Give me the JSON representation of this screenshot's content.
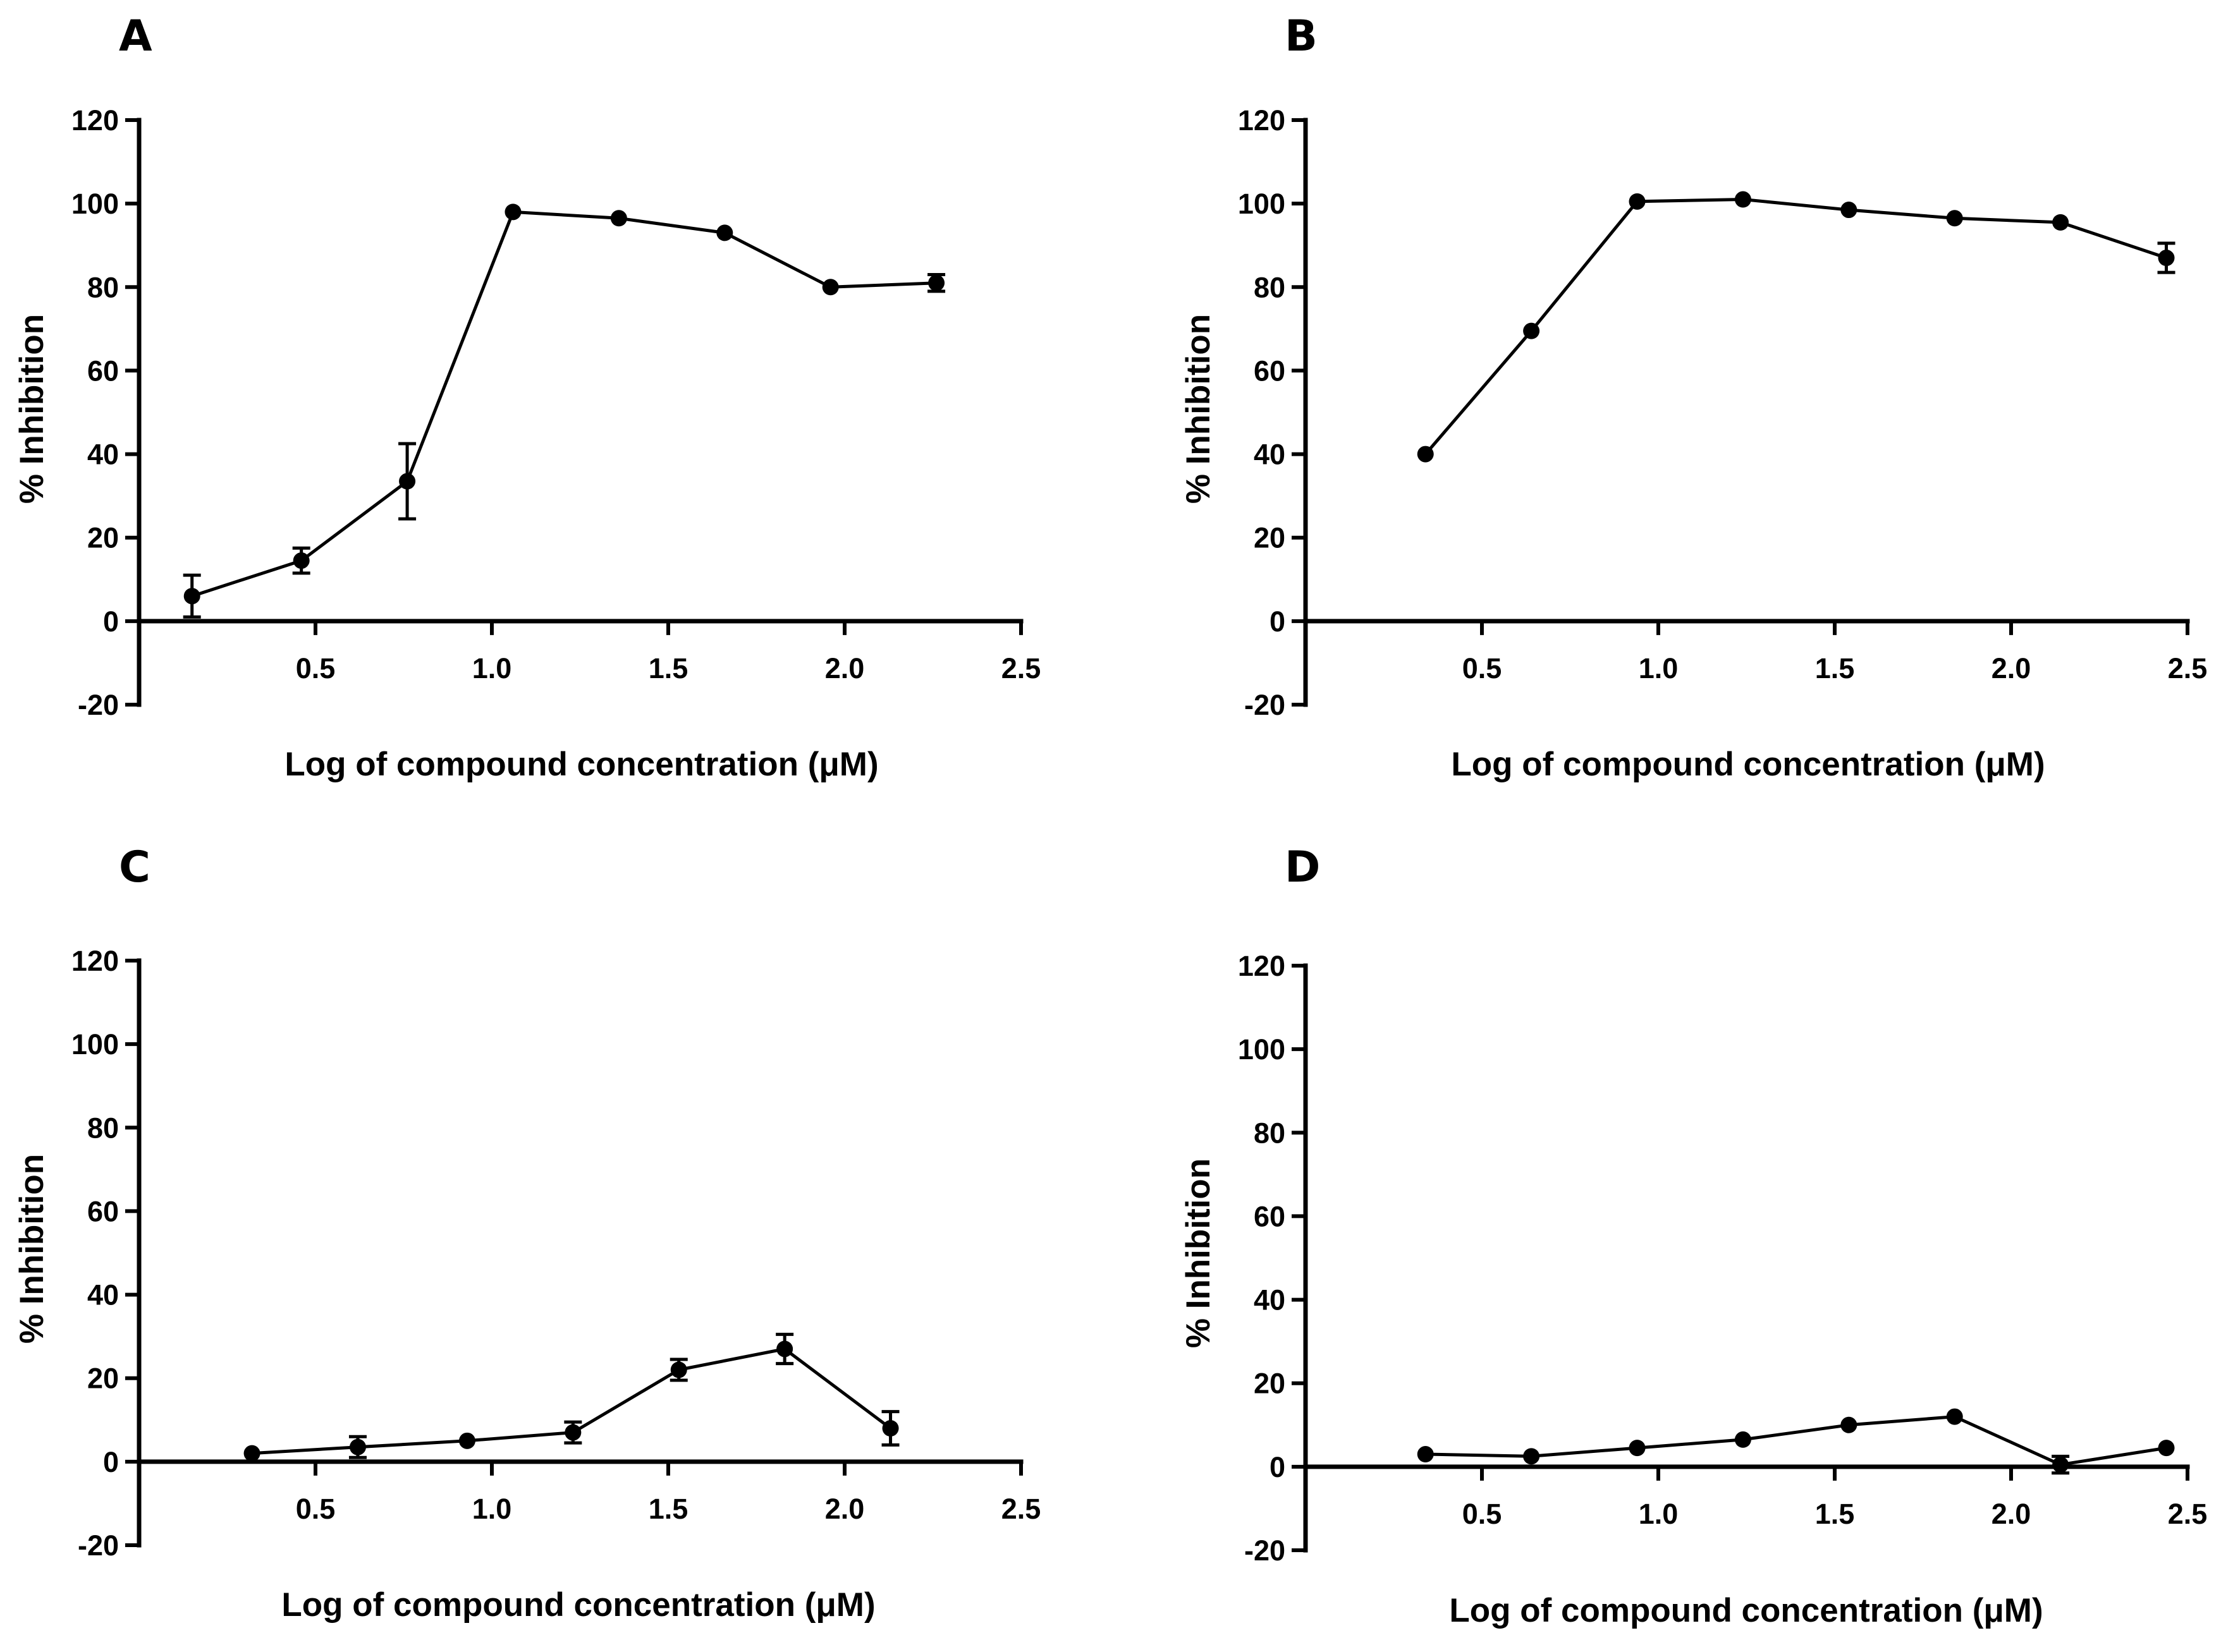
{
  "figure": {
    "panels_count": 4
  },
  "chart_data": [
    {
      "panel": "A",
      "type": "line",
      "title": "A",
      "xlabel": "Log of compound concentration (μM)",
      "ylabel": "% Inhibition",
      "xlim": [
        0.0,
        2.5
      ],
      "ylim": [
        -20,
        120
      ],
      "xticks": [
        "0.5",
        "1.0",
        "1.5",
        "2.0",
        "2.5"
      ],
      "yticks": [
        "-20",
        "0",
        "20",
        "40",
        "60",
        "80",
        "100",
        "120"
      ],
      "series": [
        {
          "name": "A",
          "x": [
            0.15,
            0.46,
            0.76,
            1.06,
            1.36,
            1.66,
            1.96,
            2.26
          ],
          "y": [
            6,
            14.5,
            33.5,
            98,
            96.5,
            93,
            80,
            81
          ],
          "error": [
            5,
            3,
            9,
            0,
            0,
            0,
            0,
            2
          ]
        }
      ]
    },
    {
      "panel": "B",
      "type": "line",
      "title": "B",
      "xlabel": "Log of compound concentration (μM)",
      "ylabel": "% Inhibition",
      "xlim": [
        0.0,
        2.5
      ],
      "ylim": [
        -20,
        120
      ],
      "xticks": [
        "0.5",
        "1.0",
        "1.5",
        "2.0",
        "2.5"
      ],
      "yticks": [
        "-20",
        "0",
        "20",
        "40",
        "60",
        "80",
        "100",
        "120"
      ],
      "series": [
        {
          "name": "B",
          "x": [
            0.34,
            0.64,
            0.94,
            1.24,
            1.54,
            1.84,
            2.14,
            2.44
          ],
          "y": [
            40,
            69.5,
            100.5,
            101,
            98.5,
            96.5,
            95.5,
            87
          ],
          "error": [
            0,
            0,
            0,
            0,
            0,
            0,
            0,
            3.5
          ]
        }
      ]
    },
    {
      "panel": "C",
      "type": "line",
      "title": "C",
      "xlabel": "Log of compound concentration (μM)",
      "ylabel": "% Inhibition",
      "xlim": [
        0.0,
        2.5
      ],
      "ylim": [
        -20,
        120
      ],
      "xticks": [
        "0.5",
        "1.0",
        "1.5",
        "2.0",
        "2.5"
      ],
      "yticks": [
        "-20",
        "0",
        "20",
        "40",
        "60",
        "80",
        "100",
        "120"
      ],
      "series": [
        {
          "name": "C",
          "x": [
            0.32,
            0.62,
            0.93,
            1.23,
            1.53,
            1.83,
            2.13
          ],
          "y": [
            2,
            3.5,
            5,
            7,
            22,
            27,
            8
          ],
          "error": [
            0,
            2.5,
            0,
            2.5,
            2.5,
            3.5,
            4
          ]
        }
      ]
    },
    {
      "panel": "D",
      "type": "line",
      "title": "D",
      "xlabel": "Log of compound concentration (μM)",
      "ylabel": "% Inhibition",
      "xlim": [
        0.0,
        2.5
      ],
      "ylim": [
        -20,
        120
      ],
      "xticks": [
        "0.5",
        "1.0",
        "1.5",
        "2.0",
        "2.5"
      ],
      "yticks": [
        "-20",
        "0",
        "20",
        "40",
        "60",
        "80",
        "100",
        "120"
      ],
      "series": [
        {
          "name": "D",
          "x": [
            0.34,
            0.64,
            0.94,
            1.24,
            1.54,
            1.84,
            2.14,
            2.44
          ],
          "y": [
            3,
            2.5,
            4.5,
            6.5,
            10,
            12,
            0.5,
            4.5
          ],
          "error": [
            0,
            0,
            0,
            0,
            0,
            0,
            2,
            0
          ]
        }
      ]
    }
  ]
}
